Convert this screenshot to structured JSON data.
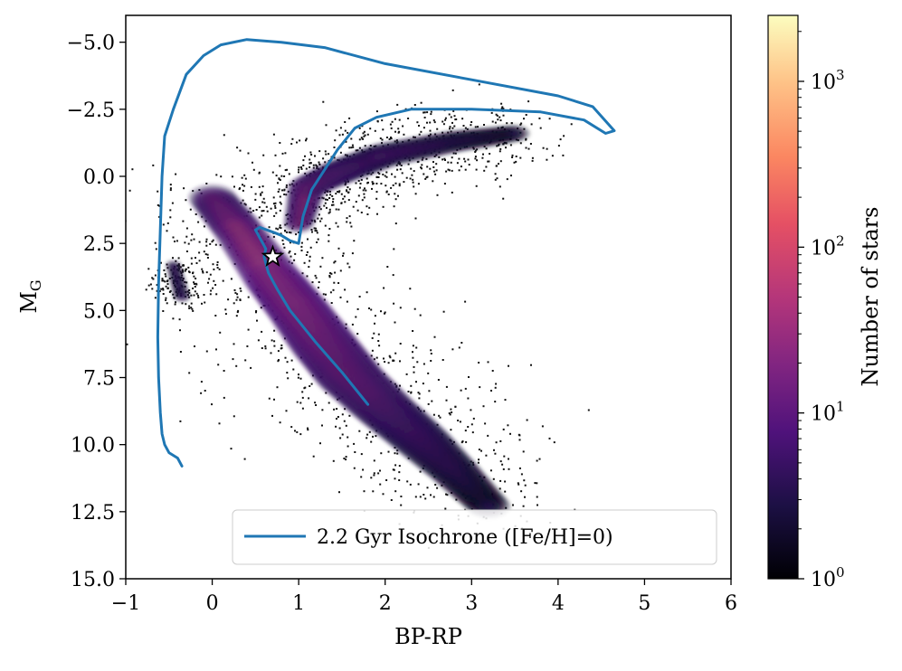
{
  "chart_data": {
    "type": "heatmap",
    "description": "Hertzsprung-Russell diagram (2D histogram density) with overlaid isochrone",
    "xlabel": "BP-RP",
    "ylabel_main": "M",
    "ylabel_sub": "G",
    "xlim": [
      -1,
      6
    ],
    "ylim": [
      15,
      -6
    ],
    "y_inverted": true,
    "x_ticks": [
      -1,
      0,
      1,
      2,
      3,
      4,
      5,
      6
    ],
    "x_tick_labels": [
      "−1",
      "0",
      "1",
      "2",
      "3",
      "4",
      "5",
      "6"
    ],
    "y_ticks": [
      -5,
      -2.5,
      0,
      2.5,
      5,
      7.5,
      10,
      12.5,
      15
    ],
    "y_tick_labels": [
      "−5.0",
      "−2.5",
      "0.0",
      "2.5",
      "5.0",
      "7.5",
      "10.0",
      "12.5",
      "15.0"
    ],
    "colorbar": {
      "label": "Number of stars",
      "scale": "log",
      "min": 1,
      "max": 2500,
      "colormap": "magma",
      "ticks": [
        1,
        10,
        100,
        1000
      ],
      "tick_bases": [
        "10",
        "10",
        "10",
        "10"
      ],
      "tick_exponents": [
        "0",
        "1",
        "2",
        "3"
      ]
    },
    "density_regions": [
      {
        "name": "main-sequence",
        "points": [
          [
            0.0,
            0.8
          ],
          [
            0.3,
            2.0
          ],
          [
            0.7,
            3.8
          ],
          [
            1.0,
            5.0
          ],
          [
            1.3,
            6.3
          ],
          [
            1.6,
            7.5
          ],
          [
            2.0,
            8.7
          ],
          [
            2.4,
            9.8
          ],
          [
            2.8,
            11.0
          ],
          [
            3.2,
            12.3
          ]
        ],
        "widths": [
          0.55,
          0.6,
          0.7,
          0.75,
          0.8,
          0.8,
          0.75,
          0.7,
          0.6,
          0.5
        ],
        "peaks": [
          2.2,
          2.8,
          3.4,
          3.3,
          3.0,
          2.6,
          2.2,
          1.7,
          1.2,
          0.6
        ]
      },
      {
        "name": "red-giant-branch",
        "points": [
          [
            1.0,
            1.8
          ],
          [
            1.1,
            0.4
          ],
          [
            1.5,
            -0.2
          ],
          [
            2.0,
            -0.8
          ],
          [
            2.8,
            -1.3
          ],
          [
            3.5,
            -1.6
          ]
        ],
        "widths": [
          0.35,
          0.45,
          0.5,
          0.5,
          0.45,
          0.35
        ],
        "peaks": [
          2.2,
          2.5,
          2.0,
          1.5,
          1.0,
          0.6
        ]
      },
      {
        "name": "white-dwarf-sequence",
        "points": [
          [
            -0.45,
            3.3
          ],
          [
            -0.35,
            4.5
          ]
        ],
        "widths": [
          0.18,
          0.2
        ],
        "peaks": [
          1.0,
          0.9
        ]
      }
    ],
    "series": [
      {
        "name": "2.2 Gyr Isochrone ([Fe/H]=0)",
        "color": "#1f77b4",
        "x": [
          1.8,
          1.5,
          1.2,
          0.9,
          0.75,
          0.65,
          0.6,
          0.62,
          0.5,
          0.55,
          0.72,
          0.8,
          0.9,
          1.0,
          1.05,
          1.15,
          1.45,
          1.65,
          1.9,
          2.3,
          3.0,
          3.8,
          4.3,
          4.55,
          4.65,
          4.4,
          4.0,
          3.0,
          2.0,
          1.3,
          0.8,
          0.4,
          0.1,
          -0.1,
          -0.3,
          -0.45,
          -0.55,
          -0.58,
          -0.6,
          -0.62,
          -0.63,
          -0.62,
          -0.6,
          -0.58,
          -0.55,
          -0.5,
          -0.4,
          -0.35
        ],
        "y": [
          8.5,
          7.3,
          6.2,
          5.0,
          4.2,
          3.6,
          3.0,
          2.7,
          2.0,
          1.9,
          2.1,
          2.2,
          2.4,
          2.5,
          1.5,
          0.5,
          -1.0,
          -1.8,
          -2.2,
          -2.5,
          -2.5,
          -2.4,
          -2.1,
          -1.6,
          -1.7,
          -2.6,
          -3.0,
          -3.6,
          -4.2,
          -4.8,
          -5.0,
          -5.1,
          -4.9,
          -4.5,
          -3.8,
          -2.5,
          -1.5,
          0.0,
          2.0,
          4.0,
          6.0,
          7.5,
          8.8,
          9.6,
          10.0,
          10.3,
          10.5,
          10.8
        ]
      }
    ],
    "marker": {
      "name": "star-marker",
      "x": 0.7,
      "y": 3.0,
      "symbol": "star",
      "fill": "#ffffff",
      "edge": "#000000"
    },
    "legend": {
      "label": "2.2 Gyr Isochrone ([Fe/H]=0)",
      "location": "lower-right"
    }
  }
}
